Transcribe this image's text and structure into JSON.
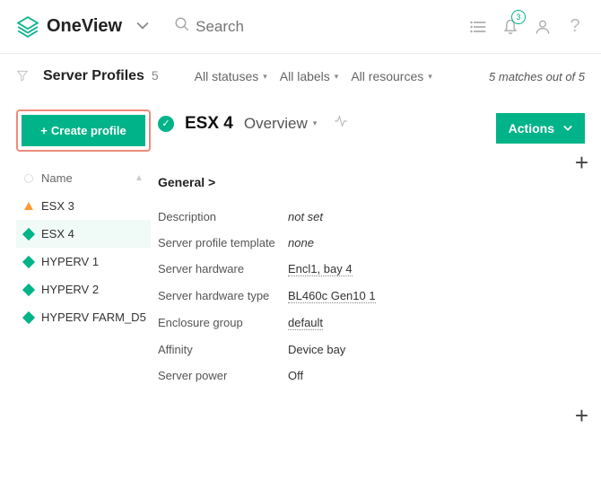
{
  "app": {
    "name": "OneView"
  },
  "search": {
    "placeholder": "Search"
  },
  "notifications": {
    "count": "3"
  },
  "filters": {
    "title": "Server Profiles",
    "count": "5",
    "statuses": "All statuses",
    "labels": "All labels",
    "resources": "All resources",
    "matches": "5 matches out of 5"
  },
  "sidebar": {
    "create_label": "Create profile",
    "header": "Name",
    "items": [
      {
        "name": "ESX 3",
        "status": "warn"
      },
      {
        "name": "ESX 4",
        "status": "ok",
        "selected": true
      },
      {
        "name": "HYPERV 1",
        "status": "ok"
      },
      {
        "name": "HYPERV 2",
        "status": "ok"
      },
      {
        "name": "HYPERV FARM_D5",
        "status": "ok"
      }
    ]
  },
  "detail": {
    "title": "ESX 4",
    "tab": "Overview",
    "actions": "Actions",
    "section": "General >",
    "props": [
      {
        "label": "Description",
        "value": "not set",
        "style": "italic"
      },
      {
        "label": "Server profile template",
        "value": "none",
        "style": "italic"
      },
      {
        "label": "Server hardware",
        "value": "Encl1, bay 4",
        "style": "linked"
      },
      {
        "label": "Server hardware type",
        "value": "BL460c Gen10 1",
        "style": "linked"
      },
      {
        "label": "Enclosure group",
        "value": "default",
        "style": "linked"
      },
      {
        "label": "Affinity",
        "value": "Device bay",
        "style": ""
      },
      {
        "label": "Server power",
        "value": "Off",
        "style": ""
      }
    ]
  },
  "colors": {
    "accent": "#00b388",
    "highlight_border": "#ed8b7a"
  }
}
